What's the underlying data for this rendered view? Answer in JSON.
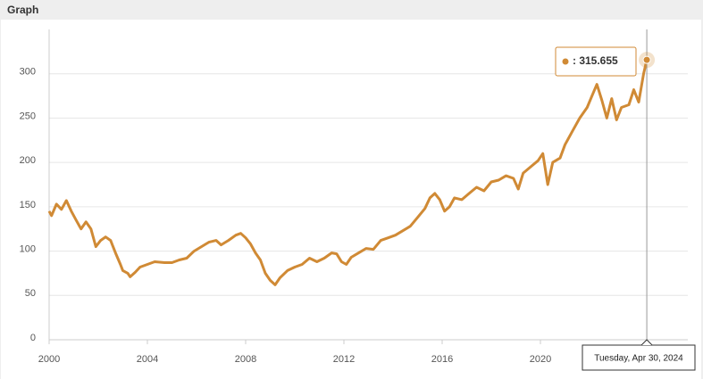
{
  "chart_data": {
    "type": "line",
    "title": "Graph",
    "x": [
      2000.0,
      2000.1,
      2000.3,
      2000.5,
      2000.7,
      2000.9,
      2001.1,
      2001.3,
      2001.5,
      2001.7,
      2001.9,
      2002.1,
      2002.3,
      2002.5,
      2002.7,
      2002.9,
      2003.0,
      2003.2,
      2003.3,
      2003.5,
      2003.7,
      2004.0,
      2004.3,
      2004.7,
      2005.0,
      2005.3,
      2005.6,
      2005.9,
      2006.2,
      2006.5,
      2006.8,
      2007.0,
      2007.3,
      2007.6,
      2007.8,
      2008.0,
      2008.2,
      2008.4,
      2008.6,
      2008.8,
      2009.0,
      2009.2,
      2009.4,
      2009.7,
      2010.0,
      2010.3,
      2010.6,
      2010.9,
      2011.2,
      2011.5,
      2011.7,
      2011.9,
      2012.1,
      2012.3,
      2012.6,
      2012.9,
      2013.2,
      2013.5,
      2013.8,
      2014.1,
      2014.4,
      2014.7,
      2015.0,
      2015.3,
      2015.5,
      2015.7,
      2015.9,
      2016.1,
      2016.3,
      2016.5,
      2016.8,
      2017.1,
      2017.4,
      2017.7,
      2018.0,
      2018.3,
      2018.6,
      2018.9,
      2019.1,
      2019.3,
      2019.6,
      2019.9,
      2020.1,
      2020.3,
      2020.5,
      2020.8,
      2021.0,
      2021.3,
      2021.6,
      2021.9,
      2022.1,
      2022.3,
      2022.5,
      2022.7,
      2022.9,
      2023.1,
      2023.3,
      2023.6,
      2023.8,
      2024.0,
      2024.2,
      2024.33
    ],
    "values": [
      145,
      140,
      153,
      147,
      157,
      145,
      135,
      125,
      133,
      125,
      105,
      112,
      116,
      112,
      98,
      85,
      78,
      75,
      71,
      76,
      82,
      85,
      88,
      87,
      87,
      90,
      92,
      100,
      105,
      110,
      112,
      107,
      112,
      118,
      120,
      115,
      108,
      98,
      90,
      75,
      67,
      62,
      70,
      78,
      82,
      85,
      92,
      88,
      92,
      98,
      97,
      88,
      85,
      93,
      98,
      103,
      102,
      112,
      115,
      118,
      123,
      128,
      138,
      148,
      160,
      165,
      158,
      145,
      150,
      160,
      158,
      165,
      172,
      168,
      178,
      180,
      185,
      182,
      170,
      188,
      195,
      202,
      210,
      175,
      200,
      205,
      220,
      235,
      250,
      262,
      275,
      288,
      270,
      250,
      272,
      248,
      262,
      265,
      282,
      268,
      300,
      315.655
    ],
    "color": "#d08a35",
    "xlim": [
      2000,
      2026
    ],
    "xticks": [
      2000,
      2004,
      2008,
      2012,
      2016,
      2020
    ],
    "ylim": [
      0,
      350
    ],
    "yticks": [
      0,
      50,
      100,
      150,
      200,
      250,
      300
    ],
    "grid": true,
    "tooltip_text": ": 315.655",
    "tooltip_date": "Tuesday, Apr 30, 2024"
  }
}
